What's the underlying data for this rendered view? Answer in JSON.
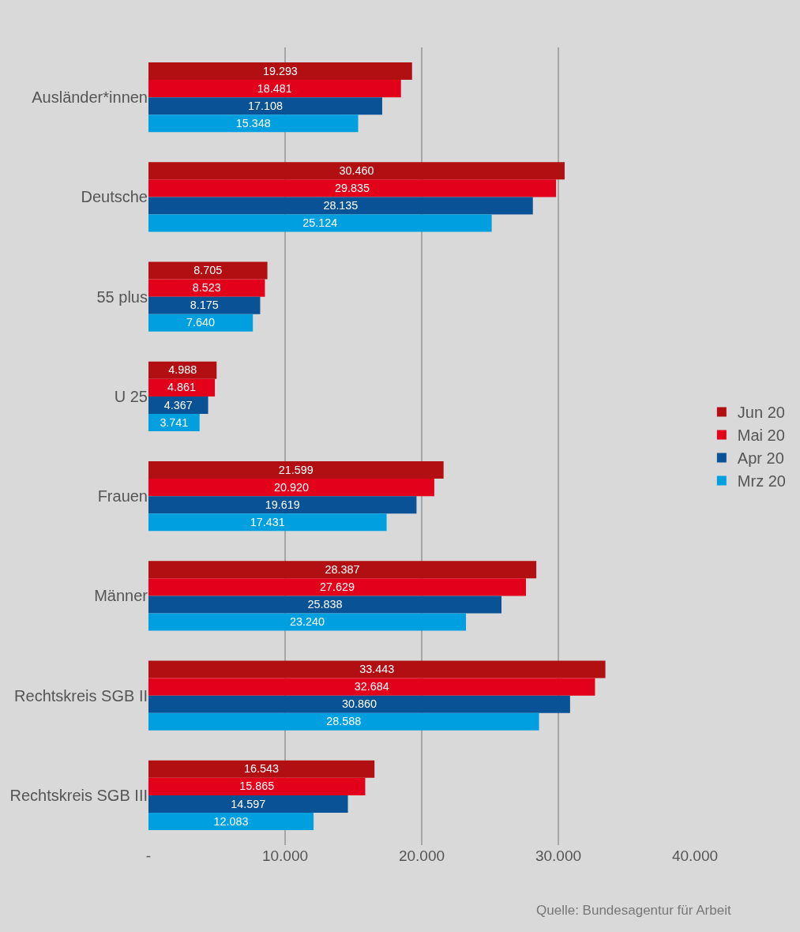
{
  "chart_data": {
    "type": "bar",
    "orientation": "horizontal",
    "categories": [
      "Ausländer*innen",
      "Deutsche",
      "55 plus",
      "U 25",
      "Frauen",
      "Männer",
      "Rechtskreis SGB II",
      "Rechtskreis SGB III"
    ],
    "series": [
      {
        "name": "Jun 20",
        "color": "#b20f12",
        "values": [
          19293,
          30460,
          8705,
          4988,
          21599,
          28387,
          33443,
          16543
        ],
        "value_labels": [
          "19.293",
          "30.460",
          "8.705",
          "4.988",
          "21.599",
          "28.387",
          "33.443",
          "16.543"
        ]
      },
      {
        "name": "Mai 20",
        "color": "#e2001a",
        "values": [
          18481,
          29835,
          8523,
          4861,
          20920,
          27629,
          32684,
          15865
        ],
        "value_labels": [
          "18.481",
          "29.835",
          "8.523",
          "4.861",
          "20.920",
          "27.629",
          "32.684",
          "15.865"
        ]
      },
      {
        "name": "Apr 20",
        "color": "#0a5296",
        "values": [
          17108,
          28135,
          8175,
          4367,
          19619,
          25838,
          30860,
          14597
        ],
        "value_labels": [
          "17.108",
          "28.135",
          "8.175",
          "4.367",
          "19.619",
          "25.838",
          "30.860",
          "14.597"
        ]
      },
      {
        "name": "Mrz 20",
        "color": "#00a0e0",
        "values": [
          15348,
          25124,
          7640,
          3741,
          17431,
          23240,
          28588,
          12083
        ],
        "value_labels": [
          "15.348",
          "25.124",
          "7.640",
          "3.741",
          "17.431",
          "23.240",
          "28.588",
          "12.083"
        ]
      }
    ],
    "xlim": [
      0,
      40000
    ],
    "xticks": [
      {
        "value": 0,
        "label": "-"
      },
      {
        "value": 10000,
        "label": "10.000"
      },
      {
        "value": 20000,
        "label": "20.000"
      },
      {
        "value": 30000,
        "label": "30.000"
      },
      {
        "value": 40000,
        "label": "40.000"
      }
    ],
    "grid": "x",
    "legend": "right",
    "annotations": [
      "Quelle: Bundesagentur für Arbeit"
    ]
  }
}
